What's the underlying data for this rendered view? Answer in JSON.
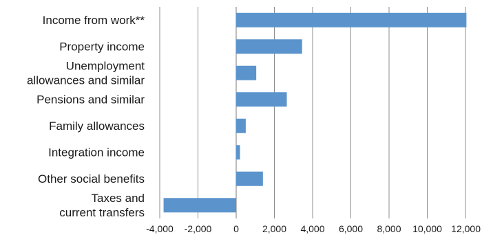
{
  "chart_data": {
    "type": "bar",
    "orientation": "horizontal",
    "title": "",
    "xlabel": "",
    "ylabel": "",
    "categories": [
      [
        "Income from work**"
      ],
      [
        "Property income"
      ],
      [
        "Unemployment",
        "allowances and similar"
      ],
      [
        "Pensions and similar"
      ],
      [
        "Family allowances"
      ],
      [
        "Integration income"
      ],
      [
        "Other social benefits"
      ],
      [
        "Taxes and",
        "current transfers"
      ]
    ],
    "values": [
      12050,
      3450,
      1050,
      2650,
      500,
      200,
      1400,
      -3800
    ],
    "xlim": [
      -4000,
      12000
    ],
    "ticks": [
      -4000,
      -2000,
      0,
      2000,
      4000,
      6000,
      8000,
      10000,
      12000
    ],
    "tick_labels": [
      "-4,000",
      "-2,000",
      "0",
      "2,000",
      "4,000",
      "6,000",
      "8,000",
      "10,000",
      "12,000"
    ],
    "grid": "vertical",
    "colors": {
      "bar": "#5b94cc",
      "grid": "#8c8c8c",
      "axis": "#7a7a7a"
    }
  }
}
